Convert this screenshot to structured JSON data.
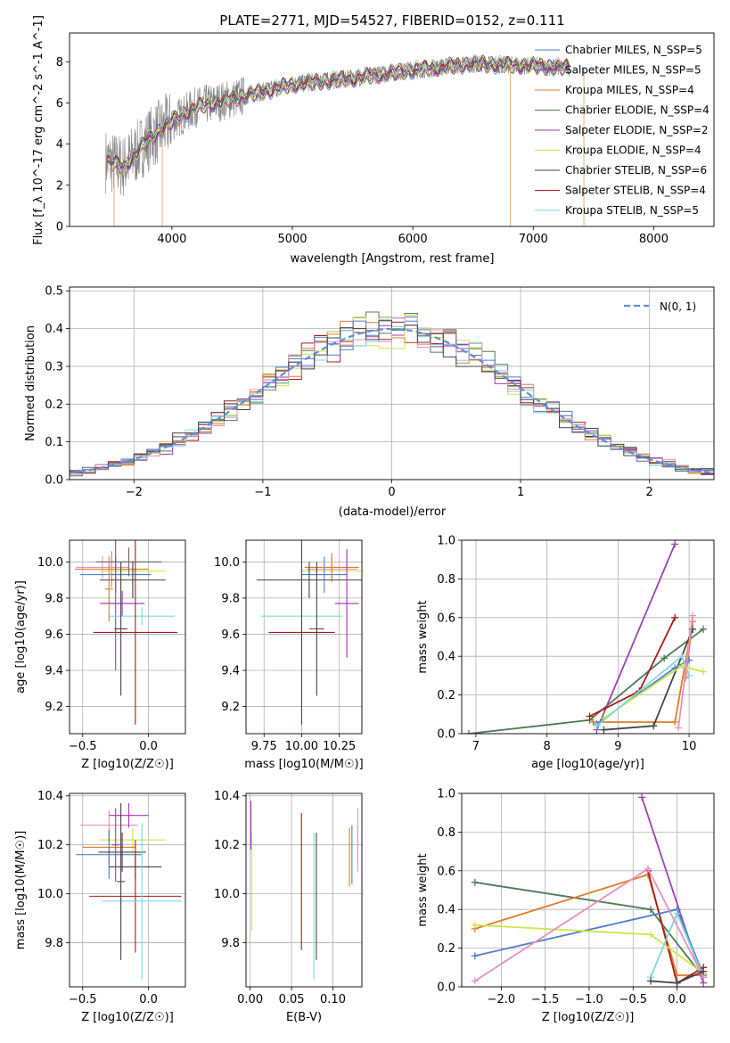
{
  "chart_data": [
    {
      "type": "line",
      "title": "PLATE=2771, MJD=54527, FIBERID=0152, z=0.111",
      "xlabel": "wavelength [Angstrom, rest frame]",
      "ylabel": "Flux [f_λ 10^-17 erg cm^-2 s^-1 A^-1]",
      "xlim": [
        3150,
        8500
      ],
      "ylim": [
        0,
        9.4
      ],
      "xticks": [
        "4000",
        "5000",
        "6000",
        "7000",
        "8000"
      ],
      "yticks": [
        "0",
        "2",
        "4",
        "6",
        "8"
      ],
      "legend": "right",
      "data_envelope": {
        "x": [
          3450,
          3600,
          3800,
          4000,
          4200,
          4500,
          5000,
          5500,
          6000,
          6500,
          7000,
          7300
        ],
        "y": [
          3.2,
          2.9,
          4.2,
          5.1,
          5.8,
          6.2,
          6.9,
          7.2,
          7.6,
          7.9,
          7.8,
          7.7
        ]
      },
      "series": [
        {
          "name": "Chabrier MILES, N_SSP=5",
          "color": "#4f7fc8"
        },
        {
          "name": "Salpeter MILES, N_SSP=5",
          "color": "#9c42b0"
        },
        {
          "name": "Kroupa MILES, N_SSP=4",
          "color": "#e07c28"
        },
        {
          "name": "Chabrier ELODIE, N_SSP=4",
          "color": "#4d7a52"
        },
        {
          "name": "Salpeter ELODIE, N_SSP=2",
          "color": "#a632b8"
        },
        {
          "name": "Kroupa ELODIE, N_SSP=4",
          "color": "#cde54a"
        },
        {
          "name": "Chabrier STELIB, N_SSP=6",
          "color": "#444444"
        },
        {
          "name": "Salpeter STELIB, N_SSP=4",
          "color": "#a81c1c"
        },
        {
          "name": "Kroupa STELIB, N_SSP=5",
          "color": "#7fd8dc"
        }
      ]
    },
    {
      "type": "line",
      "xlabel": "(data-model)/error",
      "ylabel": "Normed distribution",
      "xlim": [
        -2.5,
        2.5
      ],
      "ylim": [
        0,
        0.51
      ],
      "xticks": [
        "−2",
        "−1",
        "0",
        "1",
        "2"
      ],
      "yticks": [
        "0.0",
        "0.1",
        "0.2",
        "0.3",
        "0.4",
        "0.5"
      ],
      "legend": "top-right",
      "legend_label": "N(0, 1)",
      "gaussian": {
        "mean": 0,
        "sigma": 1
      }
    },
    {
      "type": "scatter",
      "xlabel": "Z [log10(Z/Z☉)]",
      "ylabel": "age [log10(age/yr)]",
      "xlim": [
        -0.6,
        0.28
      ],
      "ylim": [
        9.05,
        10.12
      ],
      "xticks": [
        "−0.5",
        "0.0"
      ],
      "yticks": [
        "9.2",
        "9.4",
        "9.6",
        "9.8",
        "10.0"
      ],
      "points": [
        {
          "x": -0.28,
          "y": 9.96,
          "xe": 0.28,
          "ye": 0.1,
          "c": "#e07c28"
        },
        {
          "x": -0.35,
          "y": 9.97,
          "xe": 0.2,
          "ye": 0.06,
          "c": "#e98fc0"
        },
        {
          "x": -0.25,
          "y": 9.93,
          "xe": 0.27,
          "ye": 0.1,
          "c": "#4f7fc8"
        },
        {
          "x": -0.12,
          "y": 9.95,
          "xe": 0.25,
          "ye": 0.06,
          "c": "#cde54a"
        },
        {
          "x": -0.15,
          "y": 10.0,
          "xe": 0.25,
          "ye": 0.08,
          "c": "#666666"
        },
        {
          "x": -0.12,
          "y": 9.9,
          "xe": 0.25,
          "ye": 0.1,
          "c": "#444444"
        },
        {
          "x": -0.25,
          "y": 9.77,
          "xe": 0.1,
          "ye": 0.37,
          "c": "#a632b8"
        },
        {
          "x": -0.2,
          "y": 9.77,
          "xe": 0.17,
          "ye": 0.07,
          "c": "#a632b8"
        },
        {
          "x": -0.05,
          "y": 9.7,
          "xe": 0.25,
          "ye": 0.05,
          "c": "#7fd8dc"
        },
        {
          "x": -0.1,
          "y": 9.61,
          "xe": 0.32,
          "ye": 0.51,
          "c": "#a81c1c"
        },
        {
          "x": -0.21,
          "y": 9.63,
          "xe": 0.05,
          "ye": 0.37,
          "c": "#444444"
        },
        {
          "x": -0.3,
          "y": 9.85,
          "xe": 0.03,
          "ye": 0.18,
          "c": "#e07c28"
        }
      ]
    },
    {
      "type": "scatter",
      "xlabel": "mass [log10(M/M☉)]",
      "ylabel": "",
      "xlim": [
        9.63,
        10.4
      ],
      "ylim": [
        9.05,
        10.12
      ],
      "xticks": [
        "9.75",
        "10.00",
        "10.25"
      ],
      "yticks": [
        "9.2",
        "9.4",
        "9.6",
        "9.8",
        "10.0"
      ],
      "points": [
        {
          "x": 10.2,
          "y": 9.96,
          "xe": 0.17,
          "ye": 0.07,
          "c": "#e98fc0"
        },
        {
          "x": 10.2,
          "y": 9.95,
          "xe": 0.2,
          "ye": 0.05,
          "c": "#cde54a"
        },
        {
          "x": 10.15,
          "y": 9.93,
          "xe": 0.15,
          "ye": 0.1,
          "c": "#4f7fc8"
        },
        {
          "x": 10.2,
          "y": 9.97,
          "xe": 0.18,
          "ye": 0.08,
          "c": "#e07c28"
        },
        {
          "x": 10.05,
          "y": 9.9,
          "xe": 0.35,
          "ye": 0.1,
          "c": "#444444"
        },
        {
          "x": 10.3,
          "y": 9.77,
          "xe": 0.08,
          "ye": 0.3,
          "c": "#a632b8"
        },
        {
          "x": 10.0,
          "y": 9.7,
          "xe": 0.27,
          "ye": 0.5,
          "c": "#7fd8dc"
        },
        {
          "x": 10.0,
          "y": 9.61,
          "xe": 0.22,
          "ye": 0.51,
          "c": "#a81c1c"
        },
        {
          "x": 10.1,
          "y": 9.63,
          "xe": 0.05,
          "ye": 0.37,
          "c": "#444444"
        }
      ]
    },
    {
      "type": "line",
      "xlabel": "age [log10(age/yr)]",
      "ylabel": "mass weight",
      "xlim": [
        6.8,
        10.35
      ],
      "ylim": [
        0,
        1.0
      ],
      "xticks": [
        "7",
        "8",
        "9",
        "10"
      ],
      "yticks": [
        "0.0",
        "0.2",
        "0.4",
        "0.6",
        "0.8",
        "1.0"
      ],
      "series": [
        {
          "c": "#4d7a52",
          "x": [
            6.9,
            8.6,
            9.65,
            10.2
          ],
          "y": [
            0.0,
            0.07,
            0.39,
            0.54
          ]
        },
        {
          "c": "#9c42b0",
          "x": [
            8.7,
            9.8
          ],
          "y": [
            0.02,
            0.98
          ]
        },
        {
          "c": "#a81c1c",
          "x": [
            8.6,
            9.3,
            9.8
          ],
          "y": [
            0.09,
            0.22,
            0.6
          ]
        },
        {
          "c": "#e07c28",
          "x": [
            8.65,
            9.8,
            10.05,
            9.95
          ],
          "y": [
            0.06,
            0.06,
            0.58,
            0.29
          ]
        },
        {
          "c": "#444444",
          "x": [
            8.8,
            9.5,
            10.05
          ],
          "y": [
            0.02,
            0.04,
            0.54
          ]
        },
        {
          "c": "#4f7fc8",
          "x": [
            8.7,
            9.8,
            10.0
          ],
          "y": [
            0.05,
            0.34,
            0.38
          ]
        },
        {
          "c": "#cde54a",
          "x": [
            8.8,
            9.9,
            10.2
          ],
          "y": [
            0.08,
            0.35,
            0.32
          ]
        },
        {
          "c": "#7fd8dc",
          "x": [
            8.7,
            9.9,
            10.0
          ],
          "y": [
            0.04,
            0.4,
            0.3
          ]
        },
        {
          "c": "#e98fc0",
          "x": [
            9.85,
            10.05
          ],
          "y": [
            0.03,
            0.61
          ]
        }
      ]
    },
    {
      "type": "scatter",
      "xlabel": "Z [log10(Z/Z☉)]",
      "ylabel": "mass [log10(M/M☉)]",
      "xlim": [
        -0.6,
        0.28
      ],
      "ylim": [
        9.62,
        10.41
      ],
      "xticks": [
        "−0.5",
        "0.0"
      ],
      "yticks": [
        "9.8",
        "10.0",
        "10.2",
        "10.4"
      ],
      "points": [
        {
          "x": -0.3,
          "y": 10.28,
          "xe": 0.22,
          "ye": 0.06,
          "c": "#e98fc0"
        },
        {
          "x": -0.15,
          "y": 10.32,
          "xe": 0.15,
          "ye": 0.05,
          "c": "#a632b8"
        },
        {
          "x": -0.12,
          "y": 10.22,
          "xe": 0.25,
          "ye": 0.05,
          "c": "#cde54a"
        },
        {
          "x": -0.3,
          "y": 10.19,
          "xe": 0.2,
          "ye": 0.07,
          "c": "#e07c28"
        },
        {
          "x": -0.3,
          "y": 10.16,
          "xe": 0.25,
          "ye": 0.1,
          "c": "#4f7fc8"
        },
        {
          "x": -0.2,
          "y": 10.17,
          "xe": 0.18,
          "ye": 0.08,
          "c": "#444444"
        },
        {
          "x": -0.1,
          "y": 10.11,
          "xe": 0.2,
          "ye": 0.05,
          "c": "#444444"
        },
        {
          "x": -0.1,
          "y": 9.99,
          "xe": 0.35,
          "ye": 0.23,
          "c": "#a81c1c"
        },
        {
          "x": -0.05,
          "y": 9.97,
          "xe": 0.3,
          "ye": 0.32,
          "c": "#7fd8dc"
        },
        {
          "x": -0.25,
          "y": 10.2,
          "xe": 0.03,
          "ye": 0.15,
          "c": "#a632b8"
        },
        {
          "x": -0.21,
          "y": 10.05,
          "xe": 0.03,
          "ye": 0.32,
          "c": "#444444"
        }
      ]
    },
    {
      "type": "scatter",
      "xlabel": "E(B-V)",
      "ylabel": "",
      "xlim": [
        -0.005,
        0.135
      ],
      "ylim": [
        9.62,
        10.41
      ],
      "xticks": [
        "0.00",
        "0.05",
        "0.10"
      ],
      "yticks": [
        "9.8",
        "10.0",
        "10.2",
        "10.4"
      ],
      "points": [
        {
          "x": 0.001,
          "y": 10.28,
          "xe": 0,
          "ye": 0.1,
          "c": "#a632b8"
        },
        {
          "x": 0.002,
          "y": 10.05,
          "xe": 0,
          "ye": 0.2,
          "c": "#cde54a"
        },
        {
          "x": 0.062,
          "y": 10.05,
          "xe": 0,
          "ye": 0.28,
          "c": "#a81c1c"
        },
        {
          "x": 0.077,
          "y": 9.95,
          "xe": 0,
          "ye": 0.3,
          "c": "#7fd8dc"
        },
        {
          "x": 0.08,
          "y": 9.99,
          "xe": 0,
          "ye": 0.26,
          "c": "#444444"
        },
        {
          "x": 0.12,
          "y": 10.15,
          "xe": 0,
          "ye": 0.12,
          "c": "#e07c28"
        },
        {
          "x": 0.123,
          "y": 10.16,
          "xe": 0,
          "ye": 0.12,
          "c": "#4f7fc8"
        },
        {
          "x": 0.13,
          "y": 10.22,
          "xe": 0,
          "ye": 0.13,
          "c": "#e98fc0"
        }
      ]
    },
    {
      "type": "line",
      "xlabel": "Z [log10(Z/Z☉)]",
      "ylabel": "mass weight",
      "xlim": [
        -2.45,
        0.42
      ],
      "ylim": [
        0,
        1.0
      ],
      "xticks": [
        "−2.0",
        "−1.5",
        "−1.0",
        "−0.5",
        "0.0"
      ],
      "yticks": [
        "0.0",
        "0.2",
        "0.4",
        "0.6",
        "0.8",
        "1.0"
      ],
      "series": [
        {
          "c": "#4d7a52",
          "x": [
            -2.3,
            -0.3,
            0.3
          ],
          "y": [
            0.54,
            0.4,
            0.05
          ]
        },
        {
          "c": "#9c42b0",
          "x": [
            -0.4,
            0.3
          ],
          "y": [
            0.98,
            0.02
          ]
        },
        {
          "c": "#e07c28",
          "x": [
            -2.3,
            -0.33,
            0.0,
            0.3
          ],
          "y": [
            0.3,
            0.58,
            0.06,
            0.06
          ]
        },
        {
          "c": "#a81c1c",
          "x": [
            -0.33,
            0.0,
            0.3
          ],
          "y": [
            0.6,
            0.02,
            0.1
          ]
        },
        {
          "c": "#4f7fc8",
          "x": [
            -2.3,
            0.0,
            0.3
          ],
          "y": [
            0.16,
            0.4,
            0.06
          ]
        },
        {
          "c": "#cde54a",
          "x": [
            -2.3,
            -0.3,
            0.3
          ],
          "y": [
            0.32,
            0.27,
            0.07
          ]
        },
        {
          "c": "#7fd8dc",
          "x": [
            -0.3,
            0.0,
            0.3
          ],
          "y": [
            0.05,
            0.38,
            0.05
          ]
        },
        {
          "c": "#e98fc0",
          "x": [
            -2.3,
            -0.33,
            0.3
          ],
          "y": [
            0.03,
            0.61,
            0.05
          ]
        },
        {
          "c": "#444444",
          "x": [
            -0.3,
            0.0,
            0.3
          ],
          "y": [
            0.03,
            0.02,
            0.08
          ]
        }
      ]
    }
  ]
}
